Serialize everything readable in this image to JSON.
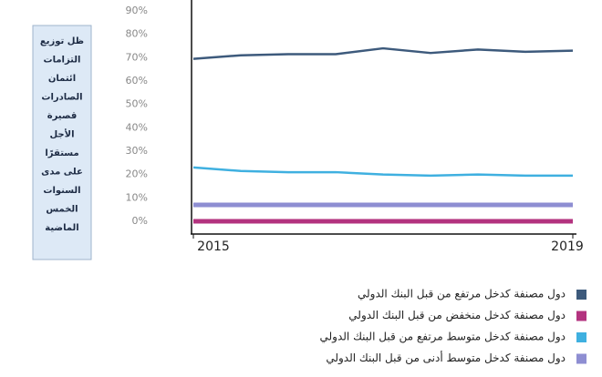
{
  "chart_data": {
    "type": "line",
    "annotation": [
      "ظل توزيع",
      "التزامات",
      "ائتمان",
      "الصادرات",
      "قصيرة",
      "الأجل",
      "مستقرًا",
      "على مدى",
      "السنوات",
      "الخمس",
      "الماضية"
    ],
    "x": [
      2015,
      2015.5,
      2016,
      2016.5,
      2017,
      2017.5,
      2018,
      2018.5,
      2019
    ],
    "xlim": [
      2015,
      2019
    ],
    "xticks": [
      2015,
      2019
    ],
    "ylim": [
      -4.5,
      90
    ],
    "yticks": [
      {
        "value": 0,
        "label": "0%"
      },
      {
        "value": 10,
        "label": "10%"
      },
      {
        "value": 20,
        "label": "20%"
      },
      {
        "value": 30,
        "label": "30%"
      },
      {
        "value": 40,
        "label": "40%"
      },
      {
        "value": 50,
        "label": "50%"
      },
      {
        "value": 60,
        "label": "60%"
      },
      {
        "value": 70,
        "label": "70%"
      },
      {
        "value": 80,
        "label": "80%"
      },
      {
        "value": 90,
        "label": "90%"
      }
    ],
    "grid": false,
    "series": [
      {
        "name": "دول مصنفة كدخل مرتفع من قبل البنك الدولي",
        "color": "#3d5a7c",
        "values": [
          69.5,
          71,
          71.5,
          71.5,
          74,
          72,
          73.5,
          72.5,
          73
        ]
      },
      {
        "name": "دول مصنفة كدخل منخفض من قبل البنك الدولي",
        "color": "#b3337f",
        "values": [
          0,
          0,
          0,
          0,
          0,
          0,
          0,
          0,
          0
        ]
      },
      {
        "name": "دول مصنفة كدخل متوسط مرتفع من قبل البنك الدولي",
        "color": "#3fb0e0",
        "values": [
          23,
          21.5,
          21,
          21,
          20,
          19.5,
          20,
          19.5,
          19.5
        ]
      },
      {
        "name": "دول مصنفة كدخل متوسط أدنى من قبل البنك الدولي",
        "color": "#8e8ed2",
        "values": [
          7,
          7,
          7,
          7,
          7,
          7,
          7,
          7,
          7
        ]
      }
    ]
  }
}
